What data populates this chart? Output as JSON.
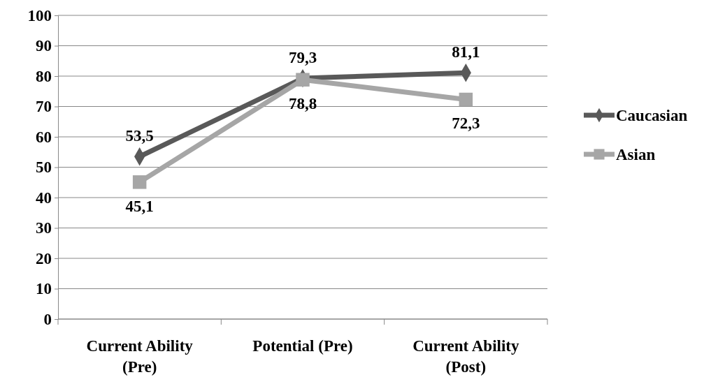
{
  "chart_data": {
    "type": "line",
    "categories": [
      "Current Ability (Pre)",
      "Potential (Pre)",
      "Current Ability (Post)"
    ],
    "series": [
      {
        "name": "Caucasian",
        "color": "#595959",
        "marker": "diamond",
        "values": [
          53.5,
          79.3,
          81.1
        ],
        "value_labels": [
          "53,5",
          "79,3",
          "81,1"
        ]
      },
      {
        "name": "Asian",
        "color": "#a6a6a6",
        "marker": "square",
        "values": [
          45.1,
          78.8,
          72.3
        ],
        "value_labels": [
          "45,1",
          "78,8",
          "72,3"
        ]
      }
    ],
    "ylim": [
      0,
      100
    ],
    "yticks": [
      0,
      10,
      20,
      30,
      40,
      50,
      60,
      70,
      80,
      90,
      100
    ],
    "grid": "y",
    "legend": "right"
  }
}
